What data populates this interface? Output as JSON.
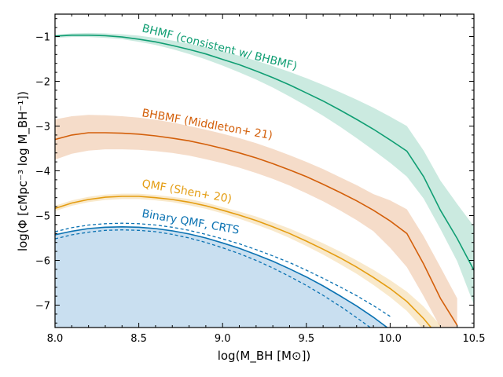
{
  "chart_data": {
    "type": "line",
    "xlabel": "log(M_BH [M⊙])",
    "ylabel": "log(Φ [cMpc⁻³ log M_BH⁻¹])",
    "xlim": [
      8.0,
      10.5
    ],
    "ylim": [
      -7.5,
      -0.5
    ],
    "xticks": [
      "8.0",
      "8.5",
      "9.0",
      "9.5",
      "10.0",
      "10.5"
    ],
    "yticks": [
      "−1",
      "−2",
      "−3",
      "−4",
      "−5",
      "−6",
      "−7"
    ],
    "colors": {
      "bhmf": "#109e73",
      "bhbmf": "#d35f0a",
      "qmf": "#e49d12",
      "binary": "#0b72b2",
      "binary_fill": "#c9dff0"
    },
    "series": [
      {
        "name": "BHMF (consistent w/ BHBMF)",
        "color_key": "bhmf",
        "x": [
          8.0,
          8.1,
          8.2,
          8.3,
          8.4,
          8.5,
          8.6,
          8.7,
          8.8,
          8.9,
          9.0,
          9.1,
          9.2,
          9.3,
          9.4,
          9.5,
          9.6,
          9.7,
          9.8,
          9.9,
          10.0,
          10.1,
          10.2,
          10.3,
          10.4,
          10.5
        ],
        "y": [
          -0.99,
          -0.97,
          -0.97,
          -0.98,
          -1.01,
          -1.06,
          -1.12,
          -1.2,
          -1.29,
          -1.39,
          -1.51,
          -1.63,
          -1.77,
          -1.92,
          -2.08,
          -2.26,
          -2.44,
          -2.64,
          -2.85,
          -3.07,
          -3.31,
          -3.56,
          -4.13,
          -4.88,
          -5.51,
          -6.22
        ],
        "lower": [
          -1.03,
          -1.01,
          -1.01,
          -1.03,
          -1.06,
          -1.12,
          -1.19,
          -1.28,
          -1.39,
          -1.51,
          -1.65,
          -1.8,
          -1.96,
          -2.14,
          -2.34,
          -2.55,
          -2.77,
          -3.01,
          -3.27,
          -3.54,
          -3.82,
          -4.13,
          -4.62,
          -5.3,
          -6.02,
          -6.99
        ],
        "upper": [
          -0.96,
          -0.93,
          -0.92,
          -0.93,
          -0.95,
          -0.98,
          -1.03,
          -1.09,
          -1.16,
          -1.24,
          -1.33,
          -1.43,
          -1.54,
          -1.66,
          -1.79,
          -1.93,
          -2.08,
          -2.24,
          -2.41,
          -2.59,
          -2.79,
          -3.0,
          -3.55,
          -4.22,
          -4.74,
          -5.24
        ]
      },
      {
        "name": "BHBMF (Middleton+ 21)",
        "color_key": "bhbmf",
        "x": [
          8.0,
          8.1,
          8.2,
          8.3,
          8.4,
          8.5,
          8.6,
          8.7,
          8.8,
          8.9,
          9.0,
          9.1,
          9.2,
          9.3,
          9.4,
          9.5,
          9.6,
          9.7,
          9.8,
          9.9,
          10.0,
          10.1,
          10.2,
          10.3,
          10.4
        ],
        "y": [
          -3.3,
          -3.2,
          -3.15,
          -3.15,
          -3.16,
          -3.18,
          -3.22,
          -3.27,
          -3.33,
          -3.41,
          -3.5,
          -3.6,
          -3.71,
          -3.84,
          -3.98,
          -4.13,
          -4.3,
          -4.48,
          -4.67,
          -4.88,
          -5.12,
          -5.4,
          -6.08,
          -6.85,
          -7.45
        ],
        "lower": [
          -3.75,
          -3.62,
          -3.55,
          -3.52,
          -3.52,
          -3.53,
          -3.56,
          -3.6,
          -3.66,
          -3.74,
          -3.83,
          -3.93,
          -4.05,
          -4.18,
          -4.33,
          -4.5,
          -4.68,
          -4.88,
          -5.1,
          -5.35,
          -5.72,
          -6.15,
          -6.8,
          -7.5,
          -7.5
        ],
        "upper": [
          -2.85,
          -2.78,
          -2.75,
          -2.76,
          -2.78,
          -2.81,
          -2.86,
          -2.92,
          -3.0,
          -3.08,
          -3.17,
          -3.27,
          -3.38,
          -3.51,
          -3.65,
          -3.8,
          -3.96,
          -4.14,
          -4.32,
          -4.52,
          -4.66,
          -4.86,
          -5.46,
          -6.15,
          -6.85
        ]
      },
      {
        "name": "QMF (Shen+ 20)",
        "color_key": "qmf",
        "x": [
          8.0,
          8.1,
          8.2,
          8.3,
          8.4,
          8.5,
          8.6,
          8.7,
          8.8,
          8.9,
          9.0,
          9.1,
          9.2,
          9.3,
          9.4,
          9.5,
          9.6,
          9.7,
          9.8,
          9.9,
          10.0,
          10.1,
          10.2,
          10.3
        ],
        "y": [
          -4.84,
          -4.72,
          -4.64,
          -4.59,
          -4.57,
          -4.57,
          -4.6,
          -4.64,
          -4.7,
          -4.78,
          -4.88,
          -4.99,
          -5.11,
          -5.25,
          -5.4,
          -5.57,
          -5.75,
          -5.94,
          -6.15,
          -6.38,
          -6.63,
          -6.92,
          -7.3,
          -7.75
        ],
        "lower": [
          -4.9,
          -4.78,
          -4.7,
          -4.65,
          -4.63,
          -4.63,
          -4.66,
          -4.7,
          -4.77,
          -4.85,
          -4.95,
          -5.07,
          -5.2,
          -5.34,
          -5.5,
          -5.68,
          -5.87,
          -6.08,
          -6.3,
          -6.55,
          -6.82,
          -7.13,
          -7.55,
          -7.75
        ],
        "upper": [
          -4.78,
          -4.66,
          -4.58,
          -4.53,
          -4.51,
          -4.51,
          -4.54,
          -4.58,
          -4.63,
          -4.71,
          -4.81,
          -4.91,
          -5.02,
          -5.15,
          -5.29,
          -5.45,
          -5.62,
          -5.8,
          -6.0,
          -6.21,
          -6.44,
          -6.7,
          -7.03,
          -7.45
        ]
      },
      {
        "name": "Binary QMF, CRTS",
        "color_key": "binary",
        "x": [
          8.0,
          8.1,
          8.2,
          8.3,
          8.4,
          8.5,
          8.6,
          8.7,
          8.8,
          8.9,
          9.0,
          9.1,
          9.2,
          9.3,
          9.4,
          9.5,
          9.6,
          9.7,
          9.8,
          9.9,
          10.0
        ],
        "y": [
          -5.43,
          -5.35,
          -5.29,
          -5.26,
          -5.25,
          -5.26,
          -5.29,
          -5.34,
          -5.41,
          -5.5,
          -5.61,
          -5.73,
          -5.87,
          -6.02,
          -6.19,
          -6.37,
          -6.57,
          -6.79,
          -7.02,
          -7.27,
          -7.55
        ],
        "lower": [
          -5.52,
          -5.43,
          -5.37,
          -5.33,
          -5.32,
          -5.33,
          -5.36,
          -5.42,
          -5.5,
          -5.6,
          -5.72,
          -5.85,
          -6.0,
          -6.17,
          -6.36,
          -6.56,
          -6.78,
          -7.02,
          -7.28,
          -7.55,
          -7.55
        ],
        "upper": [
          -5.36,
          -5.27,
          -5.21,
          -5.18,
          -5.17,
          -5.18,
          -5.21,
          -5.26,
          -5.33,
          -5.42,
          -5.52,
          -5.63,
          -5.76,
          -5.9,
          -6.05,
          -6.22,
          -6.4,
          -6.59,
          -6.79,
          -7.01,
          -7.25
        ]
      }
    ],
    "annotations": [
      {
        "text": "BHMF (consistent w/ BHBMF)",
        "color_key": "bhmf"
      },
      {
        "text": "BHBMF (Middleton+ 21)",
        "color_key": "bhbmf"
      },
      {
        "text": "QMF (Shen+ 20)",
        "color_key": "qmf"
      },
      {
        "text": "Binary QMF, CRTS",
        "color_key": "binary"
      }
    ],
    "grid": false,
    "legend": "none"
  }
}
